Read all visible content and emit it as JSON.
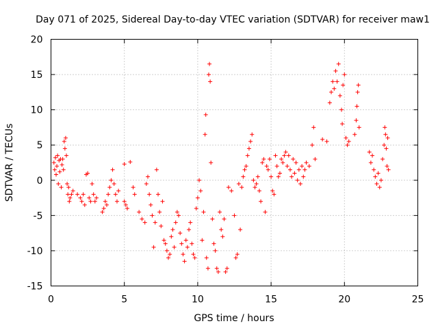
{
  "chart_data": {
    "type": "scatter",
    "title": "Day 071 of 2025, Sidereal Day-to-day VTEC variation (SDTVAR) for receiver maw1",
    "xlabel": "GPS time / hours",
    "ylabel": "SDTVAR / TECUs",
    "xlim": [
      0,
      25
    ],
    "ylim": [
      -15,
      20
    ],
    "xticks": [
      "0",
      "5",
      "10",
      "15",
      "20",
      "25"
    ],
    "yticks": [
      "20",
      "15",
      "10",
      "5",
      "0",
      "-5",
      "-10",
      "-15"
    ],
    "grid": true,
    "marker": "+",
    "color": "#ff0000",
    "series": [
      {
        "name": "SDTVAR",
        "points": [
          [
            0.2,
            2.5
          ],
          [
            0.25,
            1.5
          ],
          [
            0.3,
            3.2
          ],
          [
            0.35,
            0.8
          ],
          [
            0.4,
            2.0
          ],
          [
            0.45,
            3.5
          ],
          [
            0.5,
            -0.5
          ],
          [
            0.55,
            2.8
          ],
          [
            0.6,
            1.2
          ],
          [
            0.65,
            3.0
          ],
          [
            0.7,
            -1.0
          ],
          [
            0.75,
            2.2
          ],
          [
            0.8,
            3.0
          ],
          [
            0.85,
            1.5
          ],
          [
            0.9,
            5.5
          ],
          [
            0.95,
            4.5
          ],
          [
            1.0,
            6.0
          ],
          [
            1.05,
            3.5
          ],
          [
            1.1,
            -0.5
          ],
          [
            1.15,
            -2.0
          ],
          [
            1.2,
            -1.0
          ],
          [
            1.25,
            -3.0
          ],
          [
            1.3,
            -2.5
          ],
          [
            1.4,
            -2.0
          ],
          [
            1.5,
            -1.5
          ],
          [
            1.8,
            -2.0
          ],
          [
            2.0,
            -2.5
          ],
          [
            2.1,
            -3.0
          ],
          [
            2.2,
            -2.0
          ],
          [
            2.3,
            -3.5
          ],
          [
            2.4,
            0.8
          ],
          [
            2.5,
            1.0
          ],
          [
            2.6,
            -2.5
          ],
          [
            2.7,
            -3.0
          ],
          [
            2.8,
            -0.5
          ],
          [
            2.9,
            -2.0
          ],
          [
            3.0,
            -3.0
          ],
          [
            3.1,
            -2.5
          ],
          [
            3.5,
            -4.5
          ],
          [
            3.6,
            -4.0
          ],
          [
            3.7,
            -3.0
          ],
          [
            3.8,
            -3.5
          ],
          [
            3.9,
            -2.0
          ],
          [
            4.0,
            -1.0
          ],
          [
            4.1,
            0.0
          ],
          [
            4.2,
            1.5
          ],
          [
            4.3,
            -0.5
          ],
          [
            4.4,
            -2.0
          ],
          [
            4.5,
            -3.0
          ],
          [
            4.6,
            -1.5
          ],
          [
            5.0,
            -3.0
          ],
          [
            5.1,
            -3.5
          ],
          [
            5.0,
            2.3
          ],
          [
            5.2,
            -4.0
          ],
          [
            5.4,
            2.6
          ],
          [
            5.6,
            -1.0
          ],
          [
            5.7,
            -2.0
          ],
          [
            6.0,
            -4.5
          ],
          [
            6.2,
            -5.5
          ],
          [
            6.4,
            -6.0
          ],
          [
            6.5,
            -0.5
          ],
          [
            6.6,
            0.5
          ],
          [
            6.7,
            -2.0
          ],
          [
            6.8,
            -3.5
          ],
          [
            6.9,
            -5.0
          ],
          [
            7.0,
            -9.5
          ],
          [
            7.1,
            -6.0
          ],
          [
            7.2,
            1.5
          ],
          [
            7.3,
            -2.0
          ],
          [
            7.4,
            -4.5
          ],
          [
            7.5,
            -6.5
          ],
          [
            7.6,
            -3.0
          ],
          [
            7.7,
            -8.5
          ],
          [
            7.8,
            -9.0
          ],
          [
            7.9,
            -10.0
          ],
          [
            8.0,
            -11.0
          ],
          [
            8.1,
            -10.5
          ],
          [
            8.2,
            -8.0
          ],
          [
            8.3,
            -7.0
          ],
          [
            8.4,
            -9.5
          ],
          [
            8.5,
            -6.0
          ],
          [
            8.6,
            -4.5
          ],
          [
            8.7,
            -5.0
          ],
          [
            8.8,
            -7.5
          ],
          [
            8.9,
            -9.0
          ],
          [
            9.0,
            -10.5
          ],
          [
            9.1,
            -11.5
          ],
          [
            9.2,
            -8.5
          ],
          [
            9.3,
            -9.5
          ],
          [
            9.4,
            -7.0
          ],
          [
            9.5,
            -6.0
          ],
          [
            9.6,
            -9.0
          ],
          [
            9.7,
            -10.5
          ],
          [
            9.8,
            -11.0
          ],
          [
            9.9,
            -4.0
          ],
          [
            10.0,
            -2.5
          ],
          [
            10.1,
            0.0
          ],
          [
            10.2,
            -1.5
          ],
          [
            10.3,
            -8.5
          ],
          [
            10.4,
            -4.5
          ],
          [
            10.5,
            6.5
          ],
          [
            10.55,
            9.3
          ],
          [
            10.6,
            -11.0
          ],
          [
            10.7,
            -12.5
          ],
          [
            10.75,
            15.0
          ],
          [
            10.8,
            16.5
          ],
          [
            10.85,
            14.0
          ],
          [
            10.9,
            2.5
          ],
          [
            11.0,
            -5.5
          ],
          [
            11.1,
            -9.0
          ],
          [
            11.2,
            -10.0
          ],
          [
            11.3,
            -12.5
          ],
          [
            11.4,
            -13.0
          ],
          [
            11.5,
            -4.5
          ],
          [
            11.6,
            -7.0
          ],
          [
            11.7,
            -8.0
          ],
          [
            11.8,
            -5.5
          ],
          [
            11.9,
            -13.0
          ],
          [
            12.0,
            -12.5
          ],
          [
            12.1,
            -1.0
          ],
          [
            12.3,
            -1.5
          ],
          [
            12.5,
            -5.0
          ],
          [
            12.6,
            -11.0
          ],
          [
            12.7,
            -10.5
          ],
          [
            12.8,
            -0.5
          ],
          [
            12.9,
            -7.0
          ],
          [
            13.0,
            -1.0
          ],
          [
            13.1,
            0.5
          ],
          [
            13.2,
            1.5
          ],
          [
            13.3,
            2.0
          ],
          [
            13.4,
            3.5
          ],
          [
            13.5,
            4.5
          ],
          [
            13.6,
            5.5
          ],
          [
            13.7,
            6.5
          ],
          [
            13.8,
            0.0
          ],
          [
            13.9,
            -1.0
          ],
          [
            14.0,
            -0.5
          ],
          [
            14.1,
            0.5
          ],
          [
            14.2,
            -1.5
          ],
          [
            14.3,
            -3.0
          ],
          [
            14.4,
            2.5
          ],
          [
            14.5,
            3.0
          ],
          [
            14.6,
            -4.5
          ],
          [
            14.7,
            2.0
          ],
          [
            14.8,
            1.5
          ],
          [
            14.9,
            3.0
          ],
          [
            15.0,
            0.5
          ],
          [
            15.1,
            -1.5
          ],
          [
            15.2,
            -2.0
          ],
          [
            15.3,
            3.5
          ],
          [
            15.4,
            2.0
          ],
          [
            15.5,
            0.5
          ],
          [
            15.6,
            1.0
          ],
          [
            15.7,
            3.0
          ],
          [
            15.8,
            2.5
          ],
          [
            15.9,
            3.5
          ],
          [
            16.0,
            4.0
          ],
          [
            16.1,
            2.0
          ],
          [
            16.2,
            3.5
          ],
          [
            16.3,
            1.5
          ],
          [
            16.4,
            0.5
          ],
          [
            16.5,
            3.0
          ],
          [
            16.6,
            1.0
          ],
          [
            16.7,
            2.5
          ],
          [
            16.8,
            0.0
          ],
          [
            16.9,
            1.5
          ],
          [
            17.0,
            -0.5
          ],
          [
            17.1,
            2.0
          ],
          [
            17.2,
            0.5
          ],
          [
            17.3,
            1.5
          ],
          [
            17.4,
            2.5
          ],
          [
            17.6,
            2.0
          ],
          [
            17.8,
            5.0
          ],
          [
            17.9,
            7.5
          ],
          [
            18.0,
            3.0
          ],
          [
            18.5,
            5.8
          ],
          [
            18.8,
            5.5
          ],
          [
            19.0,
            11.0
          ],
          [
            19.1,
            12.5
          ],
          [
            19.2,
            14.0
          ],
          [
            19.3,
            13.0
          ],
          [
            19.4,
            15.5
          ],
          [
            19.5,
            14.0
          ],
          [
            19.6,
            16.5
          ],
          [
            19.7,
            12.0
          ],
          [
            19.8,
            10.0
          ],
          [
            19.85,
            8.0
          ],
          [
            19.9,
            13.5
          ],
          [
            20.0,
            15.0
          ],
          [
            20.1,
            6.0
          ],
          [
            20.2,
            5.0
          ],
          [
            20.3,
            5.5
          ],
          [
            20.7,
            6.5
          ],
          [
            20.8,
            8.5
          ],
          [
            20.85,
            10.5
          ],
          [
            20.9,
            12.5
          ],
          [
            20.95,
            13.5
          ],
          [
            21.0,
            7.5
          ],
          [
            21.7,
            4.0
          ],
          [
            21.8,
            2.5
          ],
          [
            21.9,
            3.5
          ],
          [
            22.0,
            1.5
          ],
          [
            22.1,
            0.5
          ],
          [
            22.2,
            -0.5
          ],
          [
            22.3,
            1.0
          ],
          [
            22.4,
            -1.0
          ],
          [
            22.5,
            0.0
          ],
          [
            22.6,
            3.0
          ],
          [
            22.7,
            5.0
          ],
          [
            22.75,
            7.5
          ],
          [
            22.8,
            6.5
          ],
          [
            22.85,
            4.5
          ],
          [
            22.9,
            2.0
          ],
          [
            22.95,
            6.0
          ],
          [
            23.0,
            1.5
          ]
        ]
      }
    ]
  }
}
